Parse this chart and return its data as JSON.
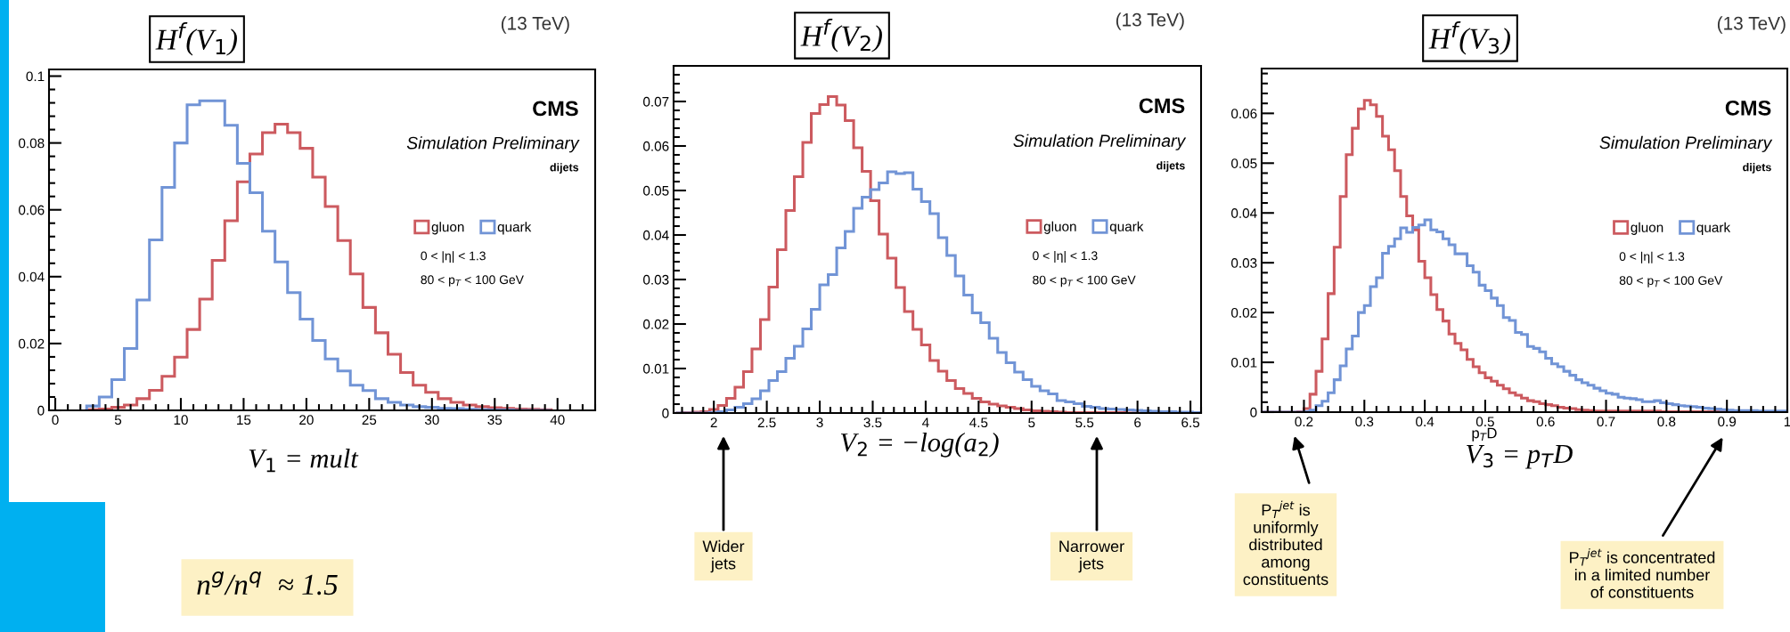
{
  "chart_data": [
    {
      "type": "histogram",
      "title": "H$^{f}$(V$_{1}$)",
      "subtitle": "(13 TeV)",
      "xlabel": "V$_{1}$ = mult",
      "legend": "center right",
      "annotations": [
        "CMS",
        "Simulation Preliminary",
        "dijets",
        "0 < |η| < 1.3",
        "80 < p$_{T}$ < 100 GeV",
        "n$^{g}$/n$^{q}$  ≈ 1.5"
      ],
      "xlim": [
        -0.5,
        43
      ],
      "ylim": [
        0,
        0.102
      ],
      "xticks": [
        0,
        5,
        10,
        15,
        20,
        25,
        30,
        35,
        40
      ],
      "yticks": [
        0,
        0.02,
        0.04,
        0.06,
        0.08,
        0.1
      ],
      "bins": [
        2.5,
        3.5,
        4.5,
        5.5,
        6.5,
        7.5,
        8.5,
        9.5,
        10.5,
        11.5,
        12.5,
        13.5,
        14.5,
        15.5,
        16.5,
        17.5,
        18.5,
        19.5,
        20.5,
        21.5,
        22.5,
        23.5,
        24.5,
        25.5,
        26.5,
        27.5,
        28.5,
        29.5,
        30.5,
        31.5,
        32.5,
        33.5,
        34.5,
        35.5,
        36.5,
        37.5,
        38.5,
        39.5
      ],
      "series": [
        {
          "name": "gluon",
          "color": "#cc5a5f",
          "values": [
            0.0002,
            0.0004,
            0.0009,
            0.0016,
            0.0035,
            0.006,
            0.0102,
            0.0159,
            0.0242,
            0.0333,
            0.0449,
            0.0567,
            0.0684,
            0.0767,
            0.0831,
            0.0856,
            0.0831,
            0.0784,
            0.0698,
            0.061,
            0.0508,
            0.0408,
            0.0308,
            0.0232,
            0.0168,
            0.0113,
            0.0075,
            0.0054,
            0.0035,
            0.0024,
            0.0016,
            0.0011,
            0.0008,
            0.0006,
            0.0004,
            0.0003,
            0.0002
          ]
        },
        {
          "name": "quark",
          "color": "#7194d6",
          "values": [
            0.0013,
            0.004,
            0.0092,
            0.0185,
            0.033,
            0.051,
            0.0667,
            0.08,
            0.0914,
            0.0926,
            0.0926,
            0.0853,
            0.0739,
            0.0651,
            0.0536,
            0.0444,
            0.0352,
            0.0273,
            0.0209,
            0.0154,
            0.0118,
            0.0075,
            0.0059,
            0.0035,
            0.0024,
            0.0016,
            0.0011,
            0.0009,
            0.0006,
            0.0005,
            0.0003,
            0.0002,
            0.0001,
            0.0001,
            0,
            0,
            0
          ]
        }
      ]
    },
    {
      "type": "histogram",
      "title": "H$^{f}$(V$_{2}$)",
      "subtitle": "(13 TeV)",
      "xlabel": "V$_{2}$ = −log(a$_{2}$)",
      "legend": "center right",
      "annotations": [
        "CMS",
        "Simulation Preliminary",
        "dijets",
        "0 < |η| < 1.3",
        "80 < p$_{T}$ < 100 GeV",
        "Wider\njets",
        "Narrower\njets"
      ],
      "xlim": [
        1.62,
        6.6
      ],
      "ylim": [
        0,
        0.078
      ],
      "xticks": [
        2,
        2.5,
        3,
        3.5,
        4,
        4.5,
        5,
        5.5,
        6,
        6.5
      ],
      "yticks": [
        0,
        0.01,
        0.02,
        0.03,
        0.04,
        0.05,
        0.06,
        0.07
      ],
      "bins": [
        1.64,
        1.72,
        1.8,
        1.88,
        1.96,
        2.04,
        2.12,
        2.2,
        2.28,
        2.36,
        2.44,
        2.52,
        2.6,
        2.68,
        2.76,
        2.84,
        2.92,
        3,
        3.08,
        3.16,
        3.24,
        3.32,
        3.4,
        3.48,
        3.56,
        3.64,
        3.72,
        3.8,
        3.88,
        3.96,
        4.04,
        4.12,
        4.2,
        4.28,
        4.36,
        4.44,
        4.52,
        4.6,
        4.68,
        4.76,
        4.84,
        4.92,
        5,
        5.08,
        5.16,
        5.24,
        5.32,
        5.4,
        5.48,
        5.56,
        5.64,
        5.72,
        5.8,
        5.88,
        5.96,
        6.04,
        6.12,
        6.2,
        6.28,
        6.36,
        6.44,
        6.52,
        6.6
      ],
      "series": [
        {
          "name": "gluon",
          "color": "#cc5a5f",
          "values": [
            0,
            0.0001,
            0.0002,
            0.0003,
            0.0008,
            0.0017,
            0.0033,
            0.0058,
            0.0093,
            0.0144,
            0.021,
            0.0283,
            0.0367,
            0.0455,
            0.0531,
            0.0608,
            0.0673,
            0.0693,
            0.0711,
            0.0692,
            0.0657,
            0.0596,
            0.0543,
            0.0477,
            0.0402,
            0.0348,
            0.0282,
            0.0228,
            0.0188,
            0.0153,
            0.0118,
            0.0094,
            0.0073,
            0.0055,
            0.0044,
            0.0033,
            0.0025,
            0.002,
            0.0016,
            0.0013,
            0.001,
            0.0007,
            0.0005,
            0.0004,
            0.0003,
            0.0002,
            0.0001,
            0.0001,
            0.0001,
            0.0001,
            0.0001,
            0.0001,
            0.0001,
            0,
            0,
            0,
            0,
            0,
            0,
            0,
            0,
            0
          ]
        },
        {
          "name": "quark",
          "color": "#7194d6",
          "values": [
            0,
            0,
            0,
            0,
            0.0001,
            0.0003,
            0.0007,
            0.0013,
            0.0021,
            0.0032,
            0.005,
            0.0073,
            0.0093,
            0.0123,
            0.015,
            0.0189,
            0.0233,
            0.0288,
            0.0311,
            0.0371,
            0.0408,
            0.046,
            0.0485,
            0.0502,
            0.0517,
            0.0542,
            0.0538,
            0.054,
            0.0503,
            0.0475,
            0.0448,
            0.0394,
            0.0354,
            0.0308,
            0.0265,
            0.0225,
            0.0203,
            0.0168,
            0.0136,
            0.0113,
            0.0092,
            0.0075,
            0.006,
            0.005,
            0.0043,
            0.0028,
            0.0025,
            0.0021,
            0.0015,
            0.0013,
            0.001,
            0.0009,
            0.0008,
            0.0007,
            0.0006,
            0.0005,
            0.0004,
            0.0003,
            0.0003,
            0.0002,
            0.0002,
            0.0001
          ]
        }
      ]
    },
    {
      "type": "histogram",
      "title": "H$^{f}$(V$_{3}$)",
      "subtitle": "(13 TeV)",
      "xlabel": "V$_{3}$ = p$_{T}$D",
      "legend": "center right",
      "annotations": [
        "CMS",
        "Simulation Preliminary",
        "dijets",
        "0 < |η| < 1.3",
        "80 < p$_{T}$ < 100 GeV",
        "p$_{T}$D",
        "P$_{T}$$^{jet}$ is\nuniformly\ndistributed\namong\nconstituents",
        "P$_{T}$$^{jet}$ is concentrated\nin a limited number\nof constituents"
      ],
      "xlim": [
        0.13,
        1.0
      ],
      "ylim": [
        0,
        0.069
      ],
      "xticks": [
        0.2,
        0.3,
        0.4,
        0.5,
        0.6,
        0.7,
        0.8,
        0.9,
        1
      ],
      "yticks": [
        0,
        0.01,
        0.02,
        0.03,
        0.04,
        0.05,
        0.06
      ],
      "bins": [
        0.13,
        0.14,
        0.15,
        0.16,
        0.17,
        0.18,
        0.19,
        0.2,
        0.21,
        0.22,
        0.23,
        0.24,
        0.25,
        0.26,
        0.27,
        0.28,
        0.29,
        0.3,
        0.31,
        0.32,
        0.33,
        0.34,
        0.35,
        0.36,
        0.37,
        0.38,
        0.39,
        0.4,
        0.41,
        0.42,
        0.43,
        0.44,
        0.45,
        0.46,
        0.47,
        0.48,
        0.49,
        0.5,
        0.51,
        0.52,
        0.53,
        0.54,
        0.55,
        0.56,
        0.57,
        0.58,
        0.59,
        0.6,
        0.61,
        0.62,
        0.63,
        0.64,
        0.65,
        0.66,
        0.67,
        0.68,
        0.69,
        0.7,
        0.71,
        0.72,
        0.73,
        0.74,
        0.75,
        0.76,
        0.77,
        0.78,
        0.79,
        0.8,
        0.81,
        0.82,
        0.83,
        0.84,
        0.85,
        0.86,
        0.87,
        0.88,
        0.89,
        0.9,
        0.91,
        0.92,
        0.93,
        0.94,
        0.95,
        0.96,
        0.97,
        0.98,
        0.99,
        1.0
      ],
      "series": [
        {
          "name": "gluon",
          "color": "#cc5a5f",
          "values": [
            0,
            0,
            0,
            0,
            0,
            0,
            0.0001,
            0.0007,
            0.0036,
            0.0082,
            0.0147,
            0.0238,
            0.0331,
            0.0433,
            0.0517,
            0.057,
            0.0609,
            0.0626,
            0.0617,
            0.0594,
            0.0554,
            0.0527,
            0.0485,
            0.0433,
            0.0394,
            0.0366,
            0.0303,
            0.027,
            0.0236,
            0.0206,
            0.0183,
            0.0157,
            0.0138,
            0.0125,
            0.0106,
            0.0091,
            0.0079,
            0.0069,
            0.0062,
            0.0054,
            0.0047,
            0.0039,
            0.0034,
            0.0028,
            0.0023,
            0.0021,
            0.0017,
            0.0015,
            0.0013,
            0.001,
            0.0008,
            0.0007,
            0.0005,
            0.0004,
            0.0003,
            0.0002,
            0.0002,
            0.0002,
            0.0002,
            0.0002,
            0.0002,
            0.0002,
            0.0002,
            0.0002,
            0.0002,
            0.0002,
            0.0001,
            0.0001,
            0.0001,
            0.0001,
            0.0001,
            0.0001,
            0.0001,
            0.0001,
            0.0001,
            0.0001,
            0.0001,
            0.0001,
            0.0001,
            0.0001,
            0.0001,
            0,
            0,
            0,
            0,
            0,
            0
          ]
        },
        {
          "name": "quark",
          "color": "#7194d6",
          "values": [
            0,
            0,
            0,
            0,
            0,
            0,
            0,
            0.0001,
            0.0004,
            0.0013,
            0.0022,
            0.0039,
            0.0065,
            0.0093,
            0.0127,
            0.0153,
            0.02,
            0.0214,
            0.0252,
            0.027,
            0.0319,
            0.0333,
            0.0348,
            0.037,
            0.0361,
            0.0371,
            0.0376,
            0.0386,
            0.0366,
            0.0362,
            0.0348,
            0.0336,
            0.0318,
            0.0318,
            0.0294,
            0.0281,
            0.0255,
            0.0244,
            0.0229,
            0.0214,
            0.019,
            0.0184,
            0.016,
            0.0156,
            0.0132,
            0.0128,
            0.0121,
            0.0108,
            0.0097,
            0.0091,
            0.0082,
            0.0074,
            0.0065,
            0.0059,
            0.0054,
            0.0048,
            0.0043,
            0.0038,
            0.0036,
            0.003,
            0.0028,
            0.0027,
            0.0025,
            0.0021,
            0.0021,
            0.0023,
            0.0019,
            0.0017,
            0.0015,
            0.0013,
            0.0012,
            0.0011,
            0.001,
            0.0008,
            0.0007,
            0.0006,
            0.0005,
            0.0004,
            0.0003,
            0.0003,
            0.0003,
            0.0003,
            0.0002,
            0.0002,
            0.0002,
            0.0002,
            0.0002
          ]
        }
      ]
    }
  ]
}
